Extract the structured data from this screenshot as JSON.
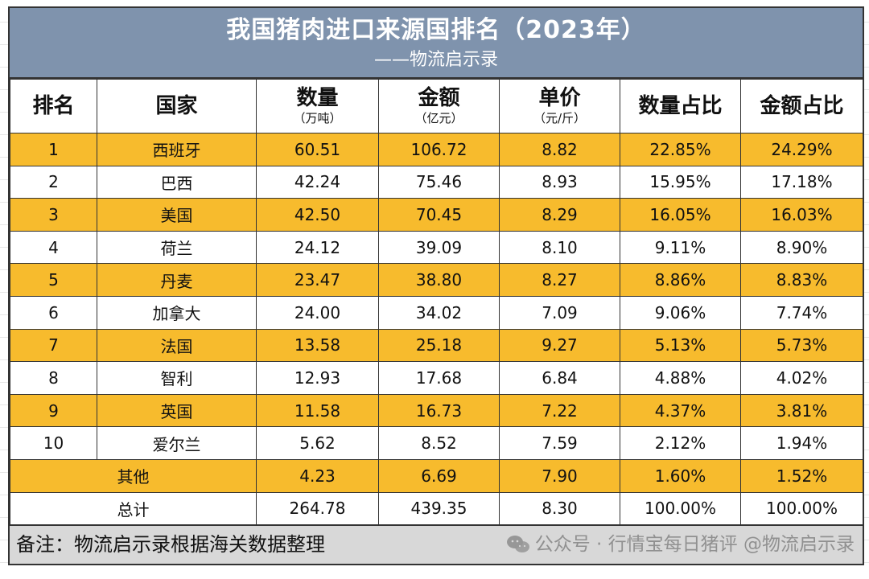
{
  "title": "我国猪肉进口来源国排名（2023年）",
  "subtitle": "——物流启示录",
  "columns": [
    {
      "label": "排名",
      "unit": ""
    },
    {
      "label": "国家",
      "unit": ""
    },
    {
      "label": "数量",
      "unit": "（万吨）"
    },
    {
      "label": "金额",
      "unit": "（亿元）"
    },
    {
      "label": "单价",
      "unit": "（元/斤）"
    },
    {
      "label": "数量占比",
      "unit": ""
    },
    {
      "label": "金额占比",
      "unit": ""
    }
  ],
  "rows": [
    {
      "rank": "1",
      "country": "西班牙",
      "qty": "60.51",
      "amount": "106.72",
      "price": "8.82",
      "qty_share": "22.85%",
      "amt_share": "24.29%",
      "highlight": true
    },
    {
      "rank": "2",
      "country": "巴西",
      "qty": "42.24",
      "amount": "75.46",
      "price": "8.93",
      "qty_share": "15.95%",
      "amt_share": "17.18%",
      "highlight": false
    },
    {
      "rank": "3",
      "country": "美国",
      "qty": "42.50",
      "amount": "70.45",
      "price": "8.29",
      "qty_share": "16.05%",
      "amt_share": "16.03%",
      "highlight": true
    },
    {
      "rank": "4",
      "country": "荷兰",
      "qty": "24.12",
      "amount": "39.09",
      "price": "8.10",
      "qty_share": "9.11%",
      "amt_share": "8.90%",
      "highlight": false
    },
    {
      "rank": "5",
      "country": "丹麦",
      "qty": "23.47",
      "amount": "38.80",
      "price": "8.27",
      "qty_share": "8.86%",
      "amt_share": "8.83%",
      "highlight": true
    },
    {
      "rank": "6",
      "country": "加拿大",
      "qty": "24.00",
      "amount": "34.02",
      "price": "7.09",
      "qty_share": "9.06%",
      "amt_share": "7.74%",
      "highlight": false
    },
    {
      "rank": "7",
      "country": "法国",
      "qty": "13.58",
      "amount": "25.18",
      "price": "9.27",
      "qty_share": "5.13%",
      "amt_share": "5.73%",
      "highlight": true
    },
    {
      "rank": "8",
      "country": "智利",
      "qty": "12.93",
      "amount": "17.68",
      "price": "6.84",
      "qty_share": "4.88%",
      "amt_share": "4.02%",
      "highlight": false
    },
    {
      "rank": "9",
      "country": "英国",
      "qty": "11.58",
      "amount": "16.73",
      "price": "7.22",
      "qty_share": "4.37%",
      "amt_share": "3.81%",
      "highlight": true
    },
    {
      "rank": "10",
      "country": "爱尔兰",
      "qty": "5.62",
      "amount": "8.52",
      "price": "7.59",
      "qty_share": "2.12%",
      "amt_share": "1.94%",
      "highlight": false
    }
  ],
  "other_row": {
    "label": "其他",
    "qty": "4.23",
    "amount": "6.69",
    "price": "7.90",
    "qty_share": "1.60%",
    "amt_share": "1.52%"
  },
  "total_row": {
    "label": "总计",
    "qty": "264.78",
    "amount": "439.35",
    "price": "8.30",
    "qty_share": "100.00%",
    "amt_share": "100.00%"
  },
  "note": "备注：物流启示录根据海关数据整理",
  "watermark": "公众号 · 行情宝每日猪评 @物流启示录",
  "colors": {
    "header_bar": "#7f93ad",
    "highlight": "#f7bb2d",
    "footer": "#d8d8d8"
  },
  "chart_data": {
    "type": "table",
    "title": "我国猪肉进口来源国排名（2023年）",
    "columns": [
      "排名",
      "国家",
      "数量（万吨）",
      "金额（亿元）",
      "单价（元/斤）",
      "数量占比",
      "金额占比"
    ],
    "categories": [
      "西班牙",
      "巴西",
      "美国",
      "荷兰",
      "丹麦",
      "加拿大",
      "法国",
      "智利",
      "英国",
      "爱尔兰",
      "其他",
      "总计"
    ],
    "series": [
      {
        "name": "数量",
        "values": [
          60.51,
          42.24,
          42.5,
          24.12,
          23.47,
          24.0,
          13.58,
          12.93,
          11.58,
          5.62,
          4.23,
          264.78
        ]
      },
      {
        "name": "金额",
        "values": [
          106.72,
          75.46,
          70.45,
          39.09,
          38.8,
          34.02,
          25.18,
          17.68,
          16.73,
          8.52,
          6.69,
          439.35
        ]
      },
      {
        "name": "单价",
        "values": [
          8.82,
          8.93,
          8.29,
          8.1,
          8.27,
          7.09,
          9.27,
          6.84,
          7.22,
          7.59,
          7.9,
          8.3
        ]
      },
      {
        "name": "数量占比",
        "values": [
          22.85,
          15.95,
          16.05,
          9.11,
          8.86,
          9.06,
          5.13,
          4.88,
          4.37,
          2.12,
          1.6,
          100.0
        ]
      },
      {
        "name": "金额占比",
        "values": [
          24.29,
          17.18,
          16.03,
          8.9,
          8.83,
          7.74,
          5.73,
          4.02,
          3.81,
          1.94,
          1.52,
          100.0
        ]
      }
    ]
  }
}
